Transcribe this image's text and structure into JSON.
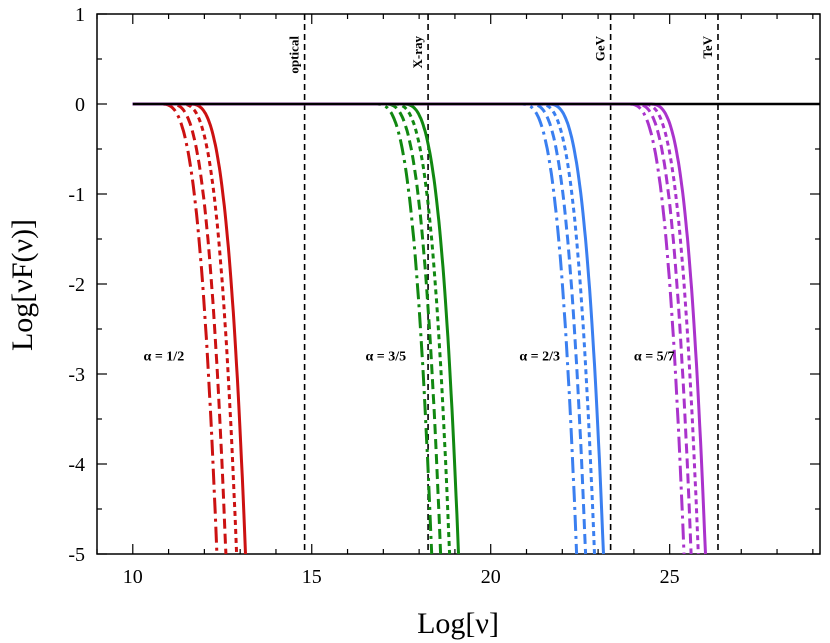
{
  "chart_data": {
    "type": "line",
    "title": "",
    "xlabel": "Log[ν]",
    "ylabel": "Log[νF(ν)]",
    "xlim": [
      9,
      29.2
    ],
    "ylim": [
      -5,
      1
    ],
    "xticks": [
      10,
      15,
      20,
      25
    ],
    "xtick_labels": [
      "10",
      "15",
      "20",
      "25"
    ],
    "yticks": [
      1,
      0,
      -1,
      -2,
      -3,
      -4,
      -5
    ],
    "ytick_labels": [
      "1",
      "0",
      "-1",
      "-2",
      "-3",
      "-4",
      "-5"
    ],
    "reference_lines": [
      {
        "label": "optical",
        "x": 14.8
      },
      {
        "label": "X-ray",
        "x": 18.25
      },
      {
        "label": "GeV",
        "x": 23.35
      },
      {
        "label": "TeV",
        "x": 26.35
      }
    ],
    "groups": [
      {
        "label": "α = 1/2",
        "color": "#cc1111",
        "label_x": 10.3,
        "label_y": -2.85,
        "cutoffs": [
          13.15,
          12.9,
          12.6,
          12.35
        ]
      },
      {
        "label": "α = 3/5",
        "color": "#118811",
        "label_x": 16.5,
        "label_y": -2.85,
        "cutoffs": [
          19.1,
          18.85,
          18.6,
          18.35
        ]
      },
      {
        "label": "α = 2/3",
        "color": "#3a7ff0",
        "label_x": 20.8,
        "label_y": -2.85,
        "cutoffs": [
          23.15,
          22.9,
          22.65,
          22.4
        ]
      },
      {
        "label": "α = 5/7",
        "color": "#aa33cc",
        "label_x": 24.0,
        "label_y": -2.85,
        "cutoffs": [
          26.0,
          25.8,
          25.6,
          25.4
        ]
      }
    ],
    "line_styles": [
      "solid",
      "short-dash",
      "dash",
      "long-dash-dot"
    ],
    "series_x_start": 10
  }
}
